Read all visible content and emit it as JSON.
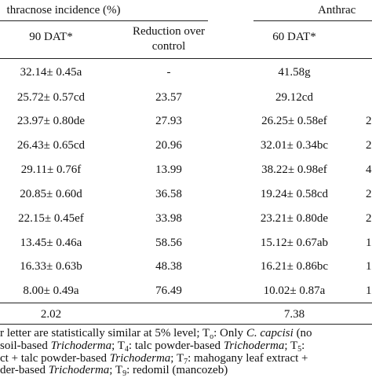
{
  "header": {
    "group_left": "thracnose incidence (%)",
    "group_right": "Anthrac",
    "col1": "90 DAT*",
    "col2_line1": "Reduction over",
    "col2_line2": "control",
    "col3": "60 DAT*"
  },
  "rows": [
    {
      "c1": "32.14± 0.45a",
      "c2": "-",
      "c3": "41.58g"
    },
    {
      "c1": "25.72± 0.57cd",
      "c2": "23.57",
      "c3": "29.12cd"
    },
    {
      "c1": "23.97± 0.80de",
      "c2": "27.93",
      "c3": "26.25± 0.58ef",
      "c4": "2"
    },
    {
      "c1": "26.43± 0.65cd",
      "c2": "20.96",
      "c3": "32.01± 0.34bc",
      "c4": "2"
    },
    {
      "c1": "29.11± 0.76f",
      "c2": "13.99",
      "c3": "38.22± 0.98ef",
      "c4": "4"
    },
    {
      "c1": "20.85± 0.60d",
      "c2": "36.58",
      "c3": "19.24± 0.58cd",
      "c4": "2"
    },
    {
      "c1": "22.15± 0.45ef",
      "c2": "33.98",
      "c3": "23.21± 0.80de",
      "c4": "2"
    },
    {
      "c1": "13.45± 0.46a",
      "c2": "58.56",
      "c3": "15.12± 0.67ab",
      "c4": "1"
    },
    {
      "c1": "16.33± 0.63b",
      "c2": "48.38",
      "c3": "16.21± 0.86bc",
      "c4": "1"
    },
    {
      "c1": "8.00± 0.49a",
      "c2": "76.49",
      "c3": "10.02± 0.87a",
      "c4": "1"
    }
  ],
  "lsd": {
    "c1": "2.02",
    "c3": "7.38"
  },
  "footnote": {
    "l1_a": "r letter are statistically similar at 5% level; T",
    "l1_sub": "o",
    "l1_b": ": Only ",
    "l1_it": "C. capcisi",
    "l1_c": " (no",
    "l2_a": " soil-based ",
    "l2_it1": "Trichoderma",
    "l2_b": "; T",
    "l2_sub1": "4",
    "l2_c": ": talc powder-based ",
    "l2_it2": "Trichoderma",
    "l2_d": "; T",
    "l2_sub2": "5",
    "l2_e": ":",
    "l3_a": "ct + talc powder-based ",
    "l3_it": "Trichoderma",
    "l3_b": "; T",
    "l3_sub": "7",
    "l3_c": ": mahogany leaf extract +",
    "l4_a": "der-based ",
    "l4_it": "Trichoderma",
    "l4_b": "; T",
    "l4_sub": "9",
    "l4_c": ": redomil (mancozeb)"
  }
}
